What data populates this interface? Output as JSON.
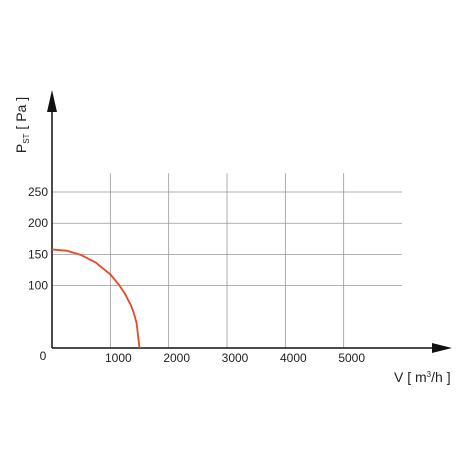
{
  "chart_data": {
    "type": "line",
    "ylabel": "P",
    "ylabel_subscript": "ST",
    "ylabel_unit": "[ Pa ]",
    "xlabel": "V [ m",
    "xlabel_superscript": "3",
    "xlabel_unit": "/h ]",
    "x": [
      0,
      250,
      500,
      750,
      1000,
      1150,
      1250,
      1350,
      1400,
      1450,
      1500
    ],
    "series": [
      {
        "color": "#e8472b",
        "values": [
          158,
          156,
          149,
          137,
          118,
          101,
          87,
          69,
          57,
          40,
          0
        ]
      }
    ],
    "xlim": [
      0,
      6000
    ],
    "ylim": [
      0,
      280
    ],
    "xticks": [
      0,
      1000,
      2000,
      3000,
      4000,
      5000
    ],
    "yticks": [
      100,
      150,
      200,
      250
    ],
    "grid": true
  }
}
